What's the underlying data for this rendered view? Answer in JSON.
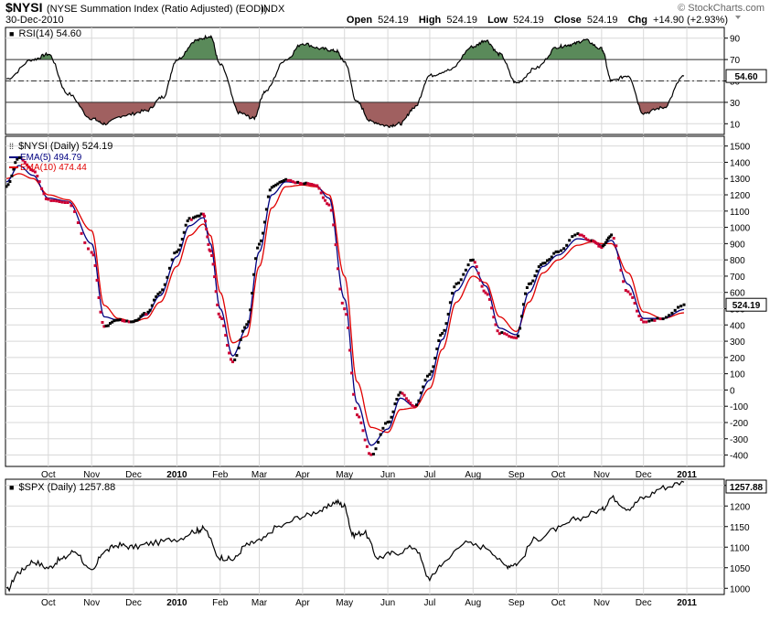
{
  "header": {
    "symbol": "$NYSI",
    "description": "(NYSE Summation Index (Ratio Adjusted) (EOD))",
    "exchange": "INDX",
    "copyright": "© StockCharts.com",
    "date": "30-Dec-2010",
    "open_label": "Open",
    "open_value": "524.19",
    "high_label": "High",
    "high_value": "524.19",
    "low_label": "Low",
    "low_value": "524.19",
    "close_label": "Close",
    "close_value": "524.19",
    "chg_label": "Chg",
    "chg_value": "+14.90 (+2.93%)"
  },
  "colors": {
    "up_dot": "#000000",
    "down_dot": "#cc0033",
    "ema5": "#000080",
    "ema10": "#e00000",
    "rsi_over": "#5a8a5a",
    "rsi_under": "#a06060",
    "grid": "#d8d8d8"
  },
  "x_months": [
    "Oct",
    "Nov",
    "Dec",
    "2010",
    "Feb",
    "Mar",
    "Apr",
    "May",
    "Jun",
    "Jul",
    "Aug",
    "Sep",
    "Oct",
    "Nov",
    "Dec",
    "2011"
  ],
  "x_bold": [
    "2010",
    "2011"
  ],
  "rsi_panel": {
    "legend": "RSI(14) 54.60",
    "last_value": 54.6,
    "last_label": "54.60",
    "yticks": [
      10,
      30,
      50,
      70,
      90
    ],
    "overbought": 70,
    "oversold": 30,
    "ylim": [
      0,
      100
    ]
  },
  "main_panel": {
    "legend_price": "$NYSI (Daily) 524.19",
    "legend_ema5": "EMA(5) 494.79",
    "legend_ema10": "EMA(10) 474.44",
    "last_label": "524.19",
    "yticks": [
      -400,
      -300,
      -200,
      -100,
      0,
      100,
      200,
      300,
      400,
      500,
      600,
      700,
      800,
      900,
      1000,
      1100,
      1200,
      1300,
      1400,
      1500
    ],
    "ylim": [
      -470,
      1560
    ]
  },
  "spx_panel": {
    "legend": "$SPX (Daily) 1257.88",
    "last_label": "1257.88",
    "yticks": [
      1000,
      1050,
      1100,
      1150,
      1200,
      1250
    ],
    "ylim": [
      985,
      1265
    ]
  },
  "chart_data": [
    {
      "type": "line",
      "name": "RSI(14)",
      "x": [
        "2009-09-01",
        "2009-09-20",
        "2009-10-01",
        "2009-10-15",
        "2009-11-01",
        "2009-11-10",
        "2009-11-25",
        "2009-12-10",
        "2009-12-22",
        "2010-01-01",
        "2010-01-15",
        "2010-01-25",
        "2010-02-01",
        "2010-02-15",
        "2010-02-25",
        "2010-03-05",
        "2010-03-20",
        "2010-04-01",
        "2010-04-15",
        "2010-04-25",
        "2010-05-01",
        "2010-05-10",
        "2010-05-20",
        "2010-06-01",
        "2010-06-10",
        "2010-06-20",
        "2010-07-01",
        "2010-07-15",
        "2010-08-01",
        "2010-08-10",
        "2010-08-20",
        "2010-09-01",
        "2010-09-15",
        "2010-10-01",
        "2010-10-10",
        "2010-10-20",
        "2010-11-01",
        "2010-11-08",
        "2010-11-20",
        "2010-12-01",
        "2010-12-15",
        "2010-12-30"
      ],
      "values": [
        52,
        70,
        75,
        38,
        15,
        10,
        18,
        22,
        35,
        70,
        88,
        92,
        65,
        20,
        15,
        40,
        70,
        85,
        80,
        78,
        68,
        30,
        12,
        8,
        10,
        25,
        55,
        60,
        82,
        88,
        75,
        48,
        62,
        82,
        84,
        88,
        80,
        50,
        55,
        20,
        25,
        54.6
      ]
    },
    {
      "type": "scatter",
      "name": "$NYSI (Daily)",
      "x": [
        "2009-09-01",
        "2009-09-10",
        "2009-09-20",
        "2009-10-01",
        "2009-10-15",
        "2009-11-01",
        "2009-11-10",
        "2009-11-20",
        "2009-12-01",
        "2009-12-10",
        "2009-12-20",
        "2010-01-01",
        "2010-01-10",
        "2010-01-20",
        "2010-01-25",
        "2010-02-01",
        "2010-02-10",
        "2010-02-20",
        "2010-03-01",
        "2010-03-10",
        "2010-03-20",
        "2010-04-01",
        "2010-04-10",
        "2010-04-20",
        "2010-05-01",
        "2010-05-10",
        "2010-05-20",
        "2010-06-01",
        "2010-06-10",
        "2010-06-20",
        "2010-07-01",
        "2010-07-10",
        "2010-07-20",
        "2010-08-01",
        "2010-08-10",
        "2010-08-20",
        "2010-09-01",
        "2010-09-10",
        "2010-09-20",
        "2010-10-01",
        "2010-10-15",
        "2010-10-25",
        "2010-11-01",
        "2010-11-08",
        "2010-11-20",
        "2010-12-01",
        "2010-12-15",
        "2010-12-30"
      ],
      "values": [
        1250,
        1430,
        1350,
        1170,
        1150,
        850,
        390,
        430,
        420,
        470,
        600,
        850,
        1050,
        1080,
        850,
        450,
        170,
        400,
        900,
        1250,
        1290,
        1270,
        1260,
        1140,
        500,
        -150,
        -400,
        -200,
        -20,
        -100,
        100,
        350,
        650,
        800,
        600,
        350,
        320,
        650,
        780,
        850,
        960,
        920,
        880,
        950,
        600,
        420,
        440,
        524.19
      ]
    },
    {
      "type": "line",
      "name": "EMA(5)",
      "x": [
        "2009-09-01",
        "2009-09-10",
        "2009-09-20",
        "2009-10-01",
        "2009-10-15",
        "2009-11-01",
        "2009-11-10",
        "2009-11-20",
        "2009-12-01",
        "2009-12-10",
        "2009-12-20",
        "2010-01-01",
        "2010-01-10",
        "2010-01-20",
        "2010-01-25",
        "2010-02-01",
        "2010-02-10",
        "2010-02-20",
        "2010-03-01",
        "2010-03-10",
        "2010-03-20",
        "2010-04-01",
        "2010-04-10",
        "2010-04-20",
        "2010-05-01",
        "2010-05-10",
        "2010-05-20",
        "2010-06-01",
        "2010-06-10",
        "2010-06-20",
        "2010-07-01",
        "2010-07-10",
        "2010-07-20",
        "2010-08-01",
        "2010-08-10",
        "2010-08-20",
        "2010-09-01",
        "2010-09-10",
        "2010-09-20",
        "2010-10-01",
        "2010-10-15",
        "2010-10-25",
        "2010-11-01",
        "2010-11-08",
        "2010-11-20",
        "2010-12-01",
        "2010-12-15",
        "2010-12-30"
      ],
      "values": [
        1280,
        1380,
        1320,
        1180,
        1160,
        900,
        450,
        430,
        420,
        460,
        580,
        820,
        1010,
        1060,
        900,
        500,
        210,
        380,
        850,
        1200,
        1280,
        1270,
        1260,
        1180,
        560,
        -80,
        -340,
        -240,
        -50,
        -100,
        60,
        310,
        610,
        760,
        640,
        380,
        340,
        600,
        760,
        830,
        930,
        920,
        890,
        920,
        650,
        440,
        440,
        494.79
      ]
    },
    {
      "type": "line",
      "name": "EMA(10)",
      "x": [
        "2009-09-01",
        "2009-09-10",
        "2009-09-20",
        "2009-10-01",
        "2009-10-15",
        "2009-11-01",
        "2009-11-10",
        "2009-11-20",
        "2009-12-01",
        "2009-12-10",
        "2009-12-20",
        "2010-01-01",
        "2010-01-10",
        "2010-01-20",
        "2010-01-25",
        "2010-02-01",
        "2010-02-10",
        "2010-02-20",
        "2010-03-01",
        "2010-03-10",
        "2010-03-20",
        "2010-04-01",
        "2010-04-10",
        "2010-04-20",
        "2010-05-01",
        "2010-05-10",
        "2010-05-20",
        "2010-06-01",
        "2010-06-10",
        "2010-06-20",
        "2010-07-01",
        "2010-07-10",
        "2010-07-20",
        "2010-08-01",
        "2010-08-10",
        "2010-08-20",
        "2010-09-01",
        "2010-09-10",
        "2010-09-20",
        "2010-10-01",
        "2010-10-15",
        "2010-10-25",
        "2010-11-01",
        "2010-11-08",
        "2010-11-20",
        "2010-12-01",
        "2010-12-15",
        "2010-12-30"
      ],
      "values": [
        1300,
        1330,
        1300,
        1200,
        1170,
        980,
        520,
        440,
        420,
        440,
        540,
        760,
        950,
        1020,
        950,
        600,
        290,
        330,
        760,
        1120,
        1250,
        1260,
        1250,
        1200,
        700,
        50,
        -230,
        -260,
        -120,
        -110,
        10,
        250,
        540,
        700,
        660,
        450,
        360,
        540,
        720,
        800,
        890,
        910,
        900,
        900,
        720,
        480,
        440,
        474.44
      ]
    },
    {
      "type": "line",
      "name": "$SPX (Daily)",
      "x": [
        "2009-09-01",
        "2009-09-10",
        "2009-09-20",
        "2009-10-01",
        "2009-10-10",
        "2009-10-20",
        "2009-11-01",
        "2009-11-10",
        "2009-11-20",
        "2009-12-01",
        "2009-12-15",
        "2010-01-01",
        "2010-01-15",
        "2010-01-20",
        "2010-02-01",
        "2010-02-10",
        "2010-02-20",
        "2010-03-01",
        "2010-03-15",
        "2010-04-01",
        "2010-04-15",
        "2010-04-25",
        "2010-05-01",
        "2010-05-07",
        "2010-05-15",
        "2010-05-25",
        "2010-06-05",
        "2010-06-20",
        "2010-07-01",
        "2010-07-10",
        "2010-07-25",
        "2010-08-10",
        "2010-08-25",
        "2010-09-01",
        "2010-09-15",
        "2010-10-01",
        "2010-10-15",
        "2010-11-01",
        "2010-11-08",
        "2010-11-20",
        "2010-12-01",
        "2010-12-15",
        "2010-12-30"
      ],
      "values": [
        995,
        1040,
        1065,
        1050,
        1070,
        1090,
        1040,
        1090,
        1105,
        1100,
        1110,
        1120,
        1140,
        1145,
        1075,
        1070,
        1105,
        1115,
        1150,
        1175,
        1190,
        1210,
        1200,
        1130,
        1135,
        1075,
        1085,
        1100,
        1025,
        1060,
        1110,
        1100,
        1055,
        1060,
        1120,
        1145,
        1170,
        1190,
        1220,
        1195,
        1220,
        1245,
        1257.88
      ]
    }
  ]
}
